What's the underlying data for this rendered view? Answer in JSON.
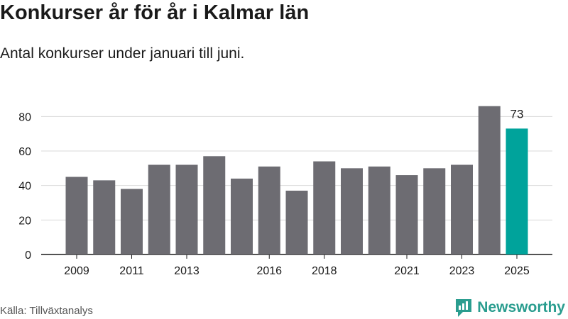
{
  "header": {
    "title": "Konkurser år för år i Kalmar län",
    "subtitle": "Antal konkurser under januari till juni."
  },
  "footer": {
    "source": "Källa: Tillväxtanalys",
    "brand": "Newsworthy",
    "brand_icon": "newsworthy-logo-icon"
  },
  "colors": {
    "bar": "#6d6c72",
    "highlight": "#00a39b",
    "grid": "#d9d9d9",
    "axis": "#1a1a1a"
  },
  "chart_data": {
    "type": "bar",
    "title": "Konkurser år för år i Kalmar län",
    "subtitle": "Antal konkurser under januari till juni.",
    "xlabel": "",
    "ylabel": "",
    "categories": [
      "2009",
      "2010",
      "2011",
      "2012",
      "2013",
      "2014",
      "2015",
      "2016",
      "2017",
      "2018",
      "2019",
      "2020",
      "2021",
      "2022",
      "2023",
      "2024",
      "2025"
    ],
    "values": [
      45,
      43,
      38,
      52,
      52,
      57,
      44,
      51,
      37,
      54,
      50,
      51,
      46,
      50,
      52,
      86,
      73
    ],
    "x_tick_labels": [
      "2009",
      "2011",
      "2013",
      "2016",
      "2018",
      "2021",
      "2023",
      "2025"
    ],
    "y_ticks": [
      0,
      20,
      40,
      60,
      80
    ],
    "ylim": [
      0,
      90
    ],
    "highlight_category": "2025",
    "data_labels": [
      {
        "category": "2025",
        "text": "73"
      }
    ],
    "grid": true,
    "legend": "none"
  }
}
